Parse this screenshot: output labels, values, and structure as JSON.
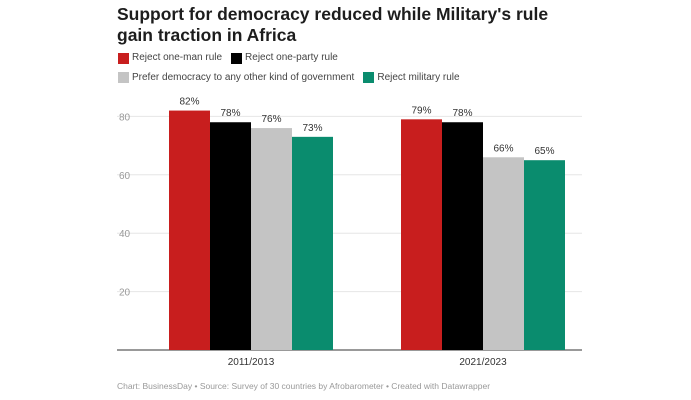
{
  "chart_data": {
    "type": "bar",
    "title": "Support for democracy reduced while Military's rule gain traction in Africa",
    "categories": [
      "2011/2013",
      "2021/2023"
    ],
    "series": [
      {
        "name": "Reject one-man rule",
        "color": "#c81e1e",
        "values": [
          82,
          79
        ]
      },
      {
        "name": "Reject one-party rule",
        "color": "#000000",
        "values": [
          78,
          78
        ]
      },
      {
        "name": "Prefer democracy to any other kind of government",
        "color": "#c4c4c4",
        "values": [
          76,
          66
        ]
      },
      {
        "name": "Reject military rule",
        "color": "#0a8c6e",
        "values": [
          73,
          65
        ]
      }
    ],
    "value_suffix": "%",
    "yticks": [
      20,
      40,
      60,
      80
    ],
    "ylim": [
      0,
      90
    ],
    "grid": true,
    "legend": "top-left",
    "xlabel": "",
    "ylabel": ""
  },
  "footer": "Chart: BusinessDay • Source: Survey of 30 countries by Afrobarometer • Created with Datawrapper"
}
